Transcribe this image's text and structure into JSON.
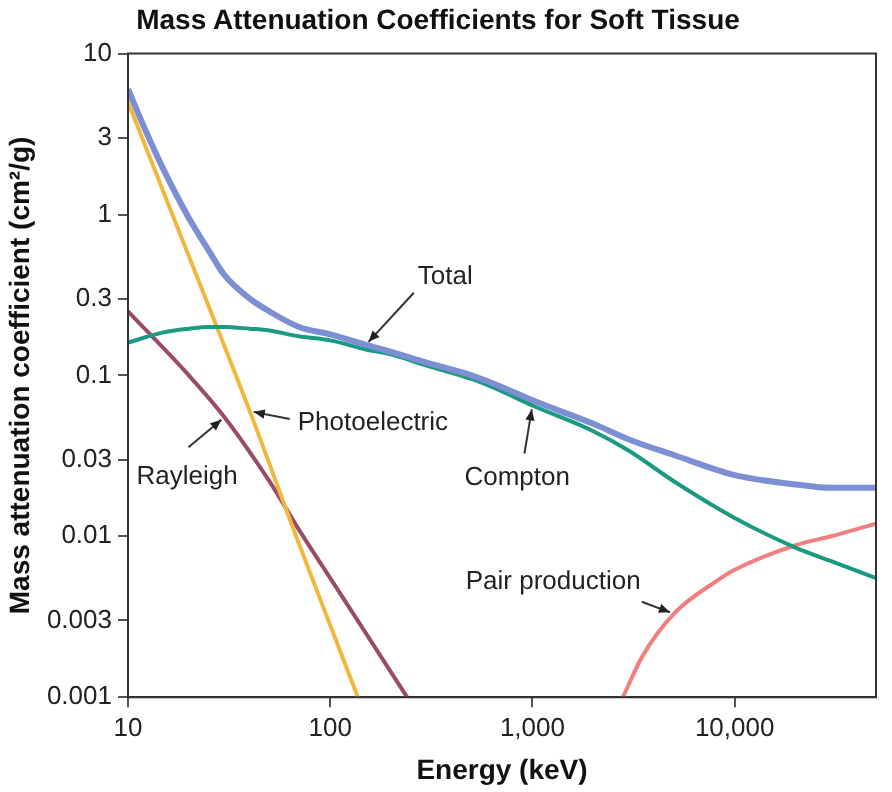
{
  "chart_data": {
    "type": "line",
    "title": "Mass Attenuation Coefficients for Soft Tissue",
    "xlabel": "Energy (keV)",
    "ylabel": "Mass attenuation coefficient (cm²/g)",
    "log": "xy",
    "marker": "none",
    "line_style": "solid",
    "xlim": [
      10,
      50000
    ],
    "ylim": [
      0.001,
      10
    ],
    "xticks": [
      10,
      100,
      {
        "value": 1000,
        "label": "1,000"
      },
      {
        "value": 10000,
        "label": "10,000"
      }
    ],
    "yticks": [
      0.001,
      0.003,
      0.01,
      0.03,
      0.1,
      0.3,
      1,
      3,
      10
    ],
    "series": [
      {
        "name": "Total",
        "color": "#7b8fd2",
        "x": [
          10,
          12,
          15,
          20,
          25,
          30,
          40,
          50,
          70,
          100,
          150,
          200,
          300,
          500,
          700,
          1000,
          2000,
          3000,
          5000,
          10000,
          20000,
          30000,
          50000
        ],
        "values": [
          6,
          3.5,
          1.9,
          0.95,
          0.6,
          0.42,
          0.3,
          0.25,
          0.2,
          0.18,
          0.155,
          0.14,
          0.12,
          0.1,
          0.085,
          0.07,
          0.05,
          0.04,
          0.032,
          0.024,
          0.021,
          0.02,
          0.02
        ]
      },
      {
        "name": "Compton",
        "color": "#1a9a80",
        "x": [
          10,
          15,
          20,
          25,
          30,
          40,
          50,
          70,
          100,
          150,
          200,
          300,
          500,
          700,
          1000,
          2000,
          3000,
          5000,
          10000,
          20000,
          30000,
          50000
        ],
        "values": [
          0.16,
          0.185,
          0.195,
          0.2,
          0.2,
          0.195,
          0.19,
          0.175,
          0.165,
          0.145,
          0.135,
          0.115,
          0.095,
          0.08,
          0.065,
          0.045,
          0.034,
          0.022,
          0.013,
          0.0085,
          0.007,
          0.0055
        ]
      },
      {
        "name": "Photoelectric",
        "color": "#f2b83e",
        "x": [
          10,
          20,
          40,
          70,
          100,
          137
        ],
        "values": [
          5,
          0.55,
          0.06,
          0.009,
          0.0028,
          0.001
        ]
      },
      {
        "name": "Rayleigh",
        "color": "#9a4a6a",
        "x": [
          10,
          20,
          30,
          50,
          70,
          100,
          150,
          240
        ],
        "values": [
          0.25,
          0.1,
          0.055,
          0.022,
          0.011,
          0.0055,
          0.0025,
          0.001
        ]
      },
      {
        "name": "Pair production",
        "color": "#f08080",
        "x": [
          2800,
          3500,
          5000,
          8000,
          10000,
          20000,
          30000,
          50000
        ],
        "values": [
          0.001,
          0.0018,
          0.0033,
          0.0052,
          0.0062,
          0.0088,
          0.01,
          0.012
        ]
      }
    ]
  }
}
